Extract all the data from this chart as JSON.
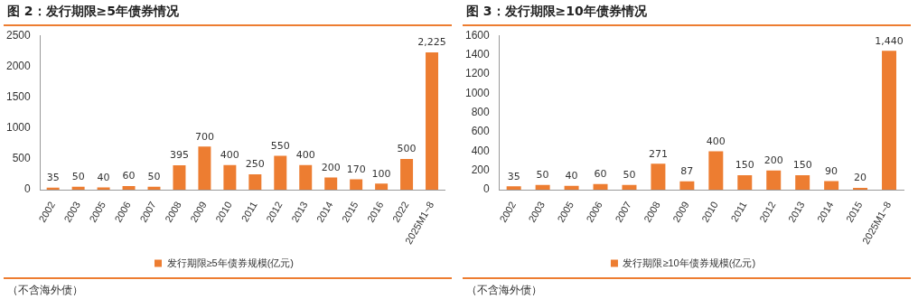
{
  "chart_data": [
    {
      "type": "bar",
      "title": "图 2：发行期限≥5年债券情况",
      "categories": [
        "2002",
        "2003",
        "2005",
        "2006",
        "2007",
        "2008",
        "2009",
        "2010",
        "2011",
        "2012",
        "2013",
        "2014",
        "2015",
        "2016",
        "2022",
        "2025M1~8"
      ],
      "series": [
        {
          "name": "发行期限≥5年债券规模(亿元)",
          "color": "#ed7d31",
          "values": [
            35,
            50,
            40,
            60,
            50,
            395,
            700,
            400,
            250,
            550,
            400,
            200,
            170,
            100,
            500,
            2225
          ],
          "value_labels": [
            "35",
            "50",
            "40",
            "60",
            "50",
            "395",
            "700",
            "400",
            "250",
            "550",
            "400",
            "200",
            "170",
            "100",
            "500",
            "2,225"
          ]
        }
      ],
      "ylim": [
        0,
        2500
      ],
      "yticks": [
        0,
        500,
        1000,
        1500,
        2000,
        2500
      ],
      "grid": false,
      "legend": "bottom",
      "annotations": [
        "（不含海外债）"
      ]
    },
    {
      "type": "bar",
      "title": "图 3：发行期限≥10年债券情况",
      "categories": [
        "2002",
        "2003",
        "2005",
        "2006",
        "2007",
        "2008",
        "2009",
        "2010",
        "2011",
        "2012",
        "2013",
        "2014",
        "2015",
        "2025M1~8"
      ],
      "series": [
        {
          "name": "发行期限≥10年债券规模(亿元)",
          "color": "#ed7d31",
          "values": [
            35,
            50,
            40,
            60,
            50,
            271,
            87,
            400,
            150,
            200,
            150,
            90,
            20,
            1440
          ],
          "value_labels": [
            "35",
            "50",
            "40",
            "60",
            "50",
            "271",
            "87",
            "400",
            "150",
            "200",
            "150",
            "90",
            "20",
            "1,440"
          ]
        }
      ],
      "ylim": [
        0,
        1600
      ],
      "yticks": [
        0,
        200,
        400,
        600,
        800,
        1000,
        1200,
        1400,
        1600
      ],
      "grid": false,
      "legend": "bottom",
      "annotations": [
        "（不含海外债）"
      ]
    }
  ]
}
